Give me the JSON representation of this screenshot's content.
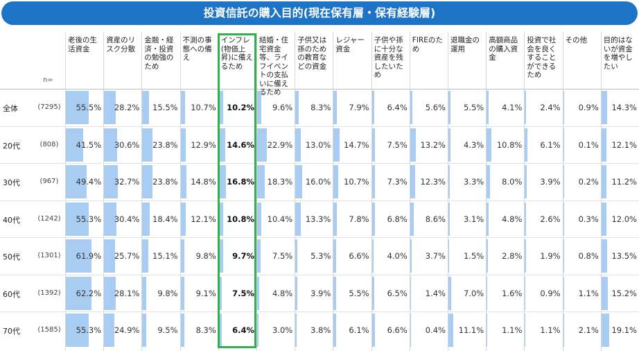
{
  "title": "投資信託の購入目的(現在保有層・保有経験層)",
  "n_label": "n=",
  "chart_data": {
    "type": "table",
    "title": "投資信託の購入目的(現在保有層・保有経験層)",
    "highlighted_column": 4,
    "bar_color": "#a9cdf2",
    "highlight_color": "#2fb24a",
    "columns": [
      "老後の生活資金",
      "資産のリスク分散",
      "金融・経済・投資の勉強のため",
      "不測の事態への備え",
      "インフレ(物価上昇)に備えるため",
      "結婚・住宅資金等、ライフイベントの支払いに備えるため",
      "子供又は孫のための教育などの資金",
      "レジャー資金",
      "子供や孫に十分な資産を残したいため",
      "FIREのため",
      "退職金の運用",
      "高額商品の購入資金",
      "投資で社会を良くすることができるため",
      "その他",
      "目的はないが資金を増やしたい"
    ],
    "rows": [
      {
        "label": "全体",
        "n": "(7295)",
        "values": [
          55.5,
          28.2,
          15.5,
          10.7,
          10.2,
          9.6,
          8.3,
          7.9,
          6.4,
          5.6,
          5.5,
          4.1,
          2.4,
          0.9,
          14.3
        ]
      },
      {
        "label": "20代",
        "n": "(808)",
        "values": [
          41.5,
          30.6,
          23.8,
          12.9,
          14.6,
          22.9,
          13.0,
          14.7,
          7.5,
          13.2,
          4.3,
          10.8,
          6.1,
          0.1,
          12.1
        ]
      },
      {
        "label": "30代",
        "n": "(967)",
        "values": [
          49.4,
          32.7,
          23.8,
          14.8,
          16.8,
          18.3,
          16.0,
          10.7,
          7.3,
          12.3,
          3.3,
          8.0,
          3.9,
          0.2,
          11.2
        ]
      },
      {
        "label": "40代",
        "n": "(1242)",
        "values": [
          55.3,
          30.4,
          18.4,
          12.1,
          10.8,
          10.4,
          13.3,
          7.8,
          6.8,
          8.6,
          3.1,
          4.8,
          2.6,
          0.3,
          12.0
        ]
      },
      {
        "label": "50代",
        "n": "(1301)",
        "values": [
          61.9,
          25.7,
          15.1,
          9.8,
          9.7,
          7.5,
          5.3,
          6.6,
          4.0,
          3.7,
          1.5,
          2.8,
          1.9,
          0.8,
          13.5
        ]
      },
      {
        "label": "60代",
        "n": "(1392)",
        "values": [
          62.2,
          28.1,
          9.8,
          9.1,
          7.5,
          4.8,
          3.9,
          5.5,
          6.5,
          1.4,
          7.0,
          1.6,
          0.9,
          1.1,
          15.2
        ]
      },
      {
        "label": "70代",
        "n": "(1585)",
        "values": [
          55.3,
          24.9,
          9.5,
          8.3,
          6.4,
          3.0,
          3.8,
          6.1,
          6.6,
          0.4,
          11.1,
          1.1,
          1.1,
          2.1,
          19.1
        ]
      }
    ]
  }
}
